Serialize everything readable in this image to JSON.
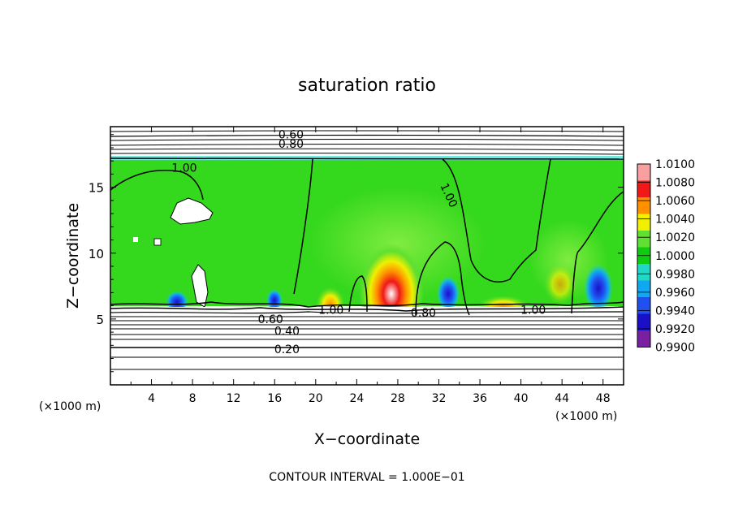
{
  "chart_data": {
    "type": "heatmap",
    "title": "saturation ratio",
    "xlabel": "X−coordinate",
    "ylabel": "Z−coordinate",
    "x_unit_left": "(×1000 m)",
    "x_unit_right": "(×1000 m)",
    "footer": "CONTOUR INTERVAL = 1.000E−01",
    "xlim": [
      0,
      50
    ],
    "ylim": [
      0,
      19.6
    ],
    "x_ticks": [
      4,
      8,
      12,
      16,
      20,
      24,
      28,
      32,
      36,
      40,
      44,
      48
    ],
    "x_tick_labels": [
      "4",
      "8",
      "12",
      "16",
      "20",
      "24",
      "28",
      "32",
      "36",
      "40",
      "44",
      "48"
    ],
    "y_ticks": [
      5,
      10,
      15
    ],
    "y_tick_labels": [
      "5",
      "10",
      "15"
    ],
    "colorbar": {
      "levels": [
        0.99,
        0.992,
        0.994,
        0.996,
        0.998,
        1.0,
        1.002,
        1.004,
        1.006,
        1.008,
        1.01
      ],
      "labels": [
        "1.0100",
        "1.0080",
        "1.0060",
        "1.0040",
        "1.0020",
        "1.0000",
        "0.9980",
        "0.9960",
        "0.9940",
        "0.9920",
        "0.9900"
      ],
      "colors": [
        "#7a1fa0",
        "#1a10c8",
        "#2050f0",
        "#10a8f0",
        "#20d8c8",
        "#10cc10",
        "#60e030",
        "#f0f000",
        "#ff9000",
        "#f01818",
        "#f8a0a0"
      ]
    },
    "contour_labels": [
      {
        "text": "0.60",
        "x": 17.6,
        "z": 19.0
      },
      {
        "text": "0.80",
        "x": 17.6,
        "z": 18.3
      },
      {
        "text": "1.00",
        "x": 7.2,
        "z": 16.5
      },
      {
        "text": "1.00",
        "x": 33.0,
        "z": 14.4
      },
      {
        "text": "1.00",
        "x": 21.5,
        "z": 5.7
      },
      {
        "text": "1.00",
        "x": 41.2,
        "z": 5.7
      },
      {
        "text": "0.80",
        "x": 30.5,
        "z": 5.5
      },
      {
        "text": "0.60",
        "x": 15.6,
        "z": 5.0
      },
      {
        "text": "0.40",
        "x": 17.2,
        "z": 4.1
      },
      {
        "text": "0.20",
        "x": 17.2,
        "z": 2.7
      }
    ]
  }
}
